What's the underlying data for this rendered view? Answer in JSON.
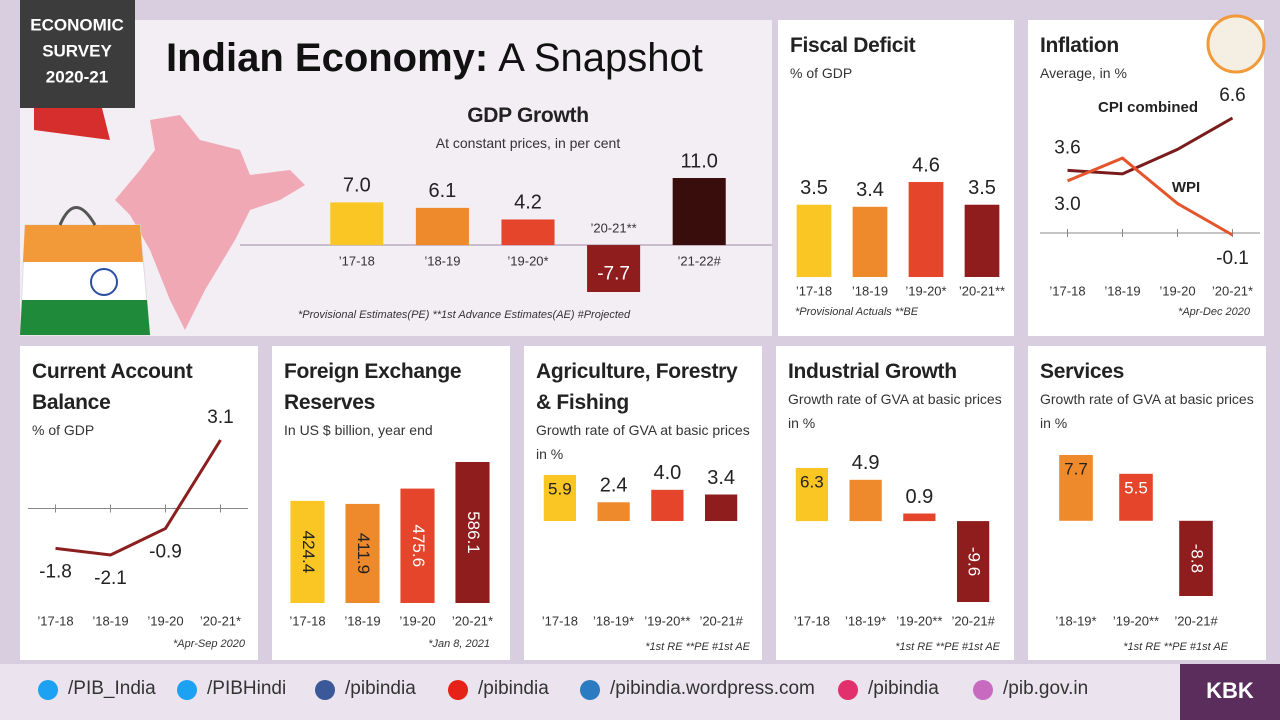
{
  "badge": [
    "ECONOMIC",
    "SURVEY",
    "2020-21"
  ],
  "title": {
    "bold": "Indian Economy:",
    "rest": "A Snapshot"
  },
  "chart_data": [
    {
      "type": "bar",
      "title": "GDP Growth",
      "subtitle": "At constant prices, in per cent",
      "categories": [
        "’17-18",
        "’18-19",
        "’19-20*",
        "’20-21**",
        "’21-22#"
      ],
      "values": [
        7.0,
        6.1,
        4.2,
        -7.7,
        11.0
      ],
      "value_labels": [
        "7.0",
        "6.1",
        "4.2",
        "-7.7",
        "11.0"
      ],
      "colors": [
        "#f9c623",
        "#ee8a2b",
        "#e4452b",
        "#8f1d1d",
        "#3a0d0d"
      ],
      "note": "*Provisional Estimates(PE) **1st Advance Estimates(AE) #Projected"
    },
    {
      "type": "bar",
      "title": "Fiscal Deficit",
      "subtitle": "% of GDP",
      "categories": [
        "’17-18",
        "’18-19",
        "’19-20*",
        "’20-21**"
      ],
      "values": [
        3.5,
        3.4,
        4.6,
        3.5
      ],
      "colors": [
        "#f9c623",
        "#ee8a2b",
        "#e4452b",
        "#8f1d1d"
      ],
      "note": "*Provisional Actuals **BE"
    },
    {
      "type": "line",
      "title": "Inflation",
      "subtitle": "Average, in %",
      "categories": [
        "’17-18",
        "’18-19",
        "’19-20",
        "’20-21*"
      ],
      "series": [
        {
          "name": "CPI combined",
          "color": "#7b1c1c",
          "values": [
            3.6,
            3.4,
            4.8,
            6.6
          ],
          "value_labels": [
            "3.6",
            null,
            null,
            "6.6"
          ]
        },
        {
          "name": "WPI",
          "color": "#e4552c",
          "values": [
            3.0,
            4.3,
            1.7,
            -0.1
          ],
          "value_labels": [
            "3.0",
            null,
            null,
            "-0.1"
          ]
        }
      ],
      "note": "*Apr-Dec 2020"
    },
    {
      "type": "line",
      "title": "Current Account Balance",
      "subtitle": "% of GDP",
      "categories": [
        "’17-18",
        "’18-19",
        "’19-20",
        "’20-21*"
      ],
      "values": [
        -1.8,
        -2.1,
        -0.9,
        3.1
      ],
      "color": "#8b1e1e",
      "zero_line": true,
      "note": "*Apr-Sep 2020"
    },
    {
      "type": "bar",
      "title": "Foreign Exchange Reserves",
      "subtitle": "In US $ billion, year end",
      "categories": [
        "’17-18",
        "’18-19",
        "’19-20",
        "’20-21*"
      ],
      "values": [
        424.4,
        411.9,
        475.6,
        586.1
      ],
      "colors": [
        "#f9c623",
        "#ee8a2b",
        "#e4452b",
        "#8f1d1d"
      ],
      "note": "*Jan 8, 2021"
    },
    {
      "type": "bar",
      "title": "Agriculture, Forestry & Fishing",
      "subtitle": "Growth rate of GVA at basic prices in %",
      "categories": [
        "’17-18",
        "’18-19*",
        "’19-20**",
        "’20-21#"
      ],
      "values": [
        5.9,
        2.4,
        4.0,
        3.4
      ],
      "value_labels": [
        "5.9",
        "2.4",
        "4.0",
        "3.4"
      ],
      "colors": [
        "#f9c623",
        "#ee8a2b",
        "#e4452b",
        "#8f1d1d"
      ],
      "note": "*1st RE **PE #1st AE"
    },
    {
      "type": "bar",
      "title": "Industrial Growth",
      "subtitle": "Growth rate of GVA at basic prices in %",
      "categories": [
        "’17-18",
        "’18-19*",
        "’19-20**",
        "’20-21#"
      ],
      "values": [
        6.3,
        4.9,
        0.9,
        -9.6
      ],
      "colors": [
        "#f9c623",
        "#ee8a2b",
        "#e4452b",
        "#8f1d1d"
      ],
      "note": "*1st RE **PE #1st AE"
    },
    {
      "type": "bar",
      "title": "Services",
      "subtitle": "Growth rate of GVA at basic prices in %",
      "categories": [
        "’18-19*",
        "’19-20**",
        "’20-21#"
      ],
      "values": [
        7.7,
        5.5,
        -8.8
      ],
      "colors": [
        "#ee8a2b",
        "#e4452b",
        "#8f1d1d"
      ],
      "note": "*1st RE **PE #1st AE"
    }
  ],
  "footer": {
    "links": [
      "/PIB_India",
      "/PIBHindi",
      "/pibindia",
      "/pibindia",
      "/pibindia.wordpress.com",
      "/pibindia",
      "/pib.gov.in"
    ],
    "tag": "KBK"
  }
}
